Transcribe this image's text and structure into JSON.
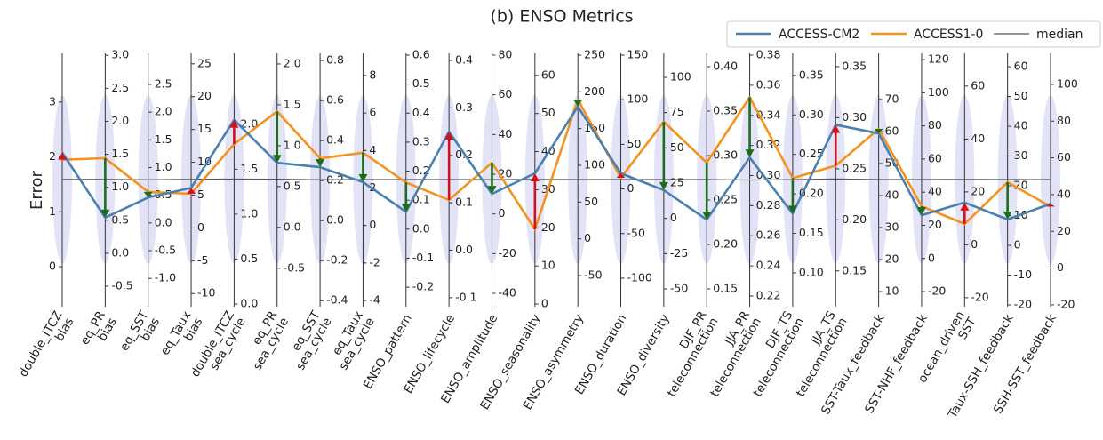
{
  "chart_data": {
    "type": "parallel",
    "title": "(b) ENSO Metrics",
    "ylabel": "Error",
    "legend": "upper right",
    "categories": [
      [
        "double_ITCZ",
        "bias"
      ],
      [
        "eq_PR",
        "bias"
      ],
      [
        "eq_SST",
        "bias"
      ],
      [
        "eq_Taux",
        "bias"
      ],
      [
        "double_ITCZ",
        "sea_cycle"
      ],
      [
        "eq_PR",
        "sea_cycle"
      ],
      [
        "eq_SST",
        "sea_cycle"
      ],
      [
        "eq_Taux",
        "sea_cycle"
      ],
      [
        "ENSO_pattern"
      ],
      [
        "ENSO_lifecycle"
      ],
      [
        "ENSO_amplitude"
      ],
      [
        "ENSO_seasonality"
      ],
      [
        "ENSO_asymmetry"
      ],
      [
        "ENSO_duration"
      ],
      [
        "ENSO_diversity"
      ],
      [
        "DJF_PR",
        "teleconnection"
      ],
      [
        "JJA_PR",
        "teleconnection"
      ],
      [
        "DJF_TS",
        "teleconnection"
      ],
      [
        "JJA_TS",
        "teleconnection"
      ],
      [
        "SST-Taux_feedback"
      ],
      [
        "SST-NHF_feedback"
      ],
      [
        "ocean_driven",
        "SST"
      ],
      [
        "Taux-SSH_feedback"
      ],
      [
        "SSH-SST_feedback"
      ]
    ],
    "axes": [
      {
        "ylim": [
          -0.73,
          3.89
        ],
        "yticks": [
          0,
          1,
          2,
          3
        ]
      },
      {
        "ylim": [
          -0.81,
          3.03
        ],
        "yticks": [
          -0.5,
          {
            "value": 0,
            "label": "0.0"
          },
          0.5,
          {
            "value": 1,
            "label": "1.0"
          },
          1.5,
          {
            "value": 2,
            "label": "2.0"
          },
          2.5,
          {
            "value": 3,
            "label": "3.0"
          }
        ]
      },
      {
        "ylim": [
          -1.51,
          3.06
        ],
        "yticks": [
          {
            "value": -1,
            "label": "-1.0"
          },
          -0.5,
          {
            "value": 0,
            "label": "0.0"
          },
          0.5,
          {
            "value": 1,
            "label": "1.0"
          },
          1.5,
          {
            "value": 2,
            "label": "2.0"
          },
          2.5
        ]
      },
      {
        "ylim": [
          -12.0,
          26.6
        ],
        "yticks": [
          -10,
          -5,
          0,
          5,
          10,
          15,
          20,
          25
        ]
      },
      {
        "ylim": [
          -0.03,
          2.79
        ],
        "yticks": [
          {
            "value": 0,
            "label": "0.0"
          },
          0.5,
          {
            "value": 1,
            "label": "1.0"
          },
          1.5,
          {
            "value": 2,
            "label": "2.0"
          }
        ]
      },
      {
        "ylim": [
          -0.97,
          2.13
        ],
        "yticks": [
          -0.5,
          {
            "value": 0,
            "label": "0.0"
          },
          0.5,
          {
            "value": 1,
            "label": "1.0"
          },
          1.5,
          {
            "value": 2,
            "label": "2.0"
          }
        ]
      },
      {
        "ylim": [
          -0.43,
          0.836
        ],
        "yticks": [
          -0.4,
          -0.2,
          {
            "value": 0,
            "label": "0.0"
          },
          0.2,
          0.4,
          0.6,
          0.8
        ]
      },
      {
        "ylim": [
          -4.33,
          9.18
        ],
        "yticks": [
          -4,
          -2,
          0,
          2,
          4,
          6,
          8
        ]
      },
      {
        "ylim": [
          -0.267,
          0.606
        ],
        "yticks": [
          -0.2,
          -0.1,
          {
            "value": 0,
            "label": "0.0"
          },
          0.1,
          0.2,
          0.3,
          0.4,
          0.5,
          0.6
        ]
      },
      {
        "ylim": [
          -0.119,
          0.415
        ],
        "yticks": [
          -0.1,
          {
            "value": 0,
            "label": "0.0"
          },
          0.1,
          0.2,
          0.3,
          0.4
        ]
      },
      {
        "ylim": [
          -46.7,
          80.9
        ],
        "yticks": [
          -40,
          -20,
          0,
          20,
          40,
          60,
          80
        ]
      },
      {
        "ylim": [
          -0.7,
          65.8
        ],
        "yticks": [
          0,
          10,
          20,
          30,
          40,
          50,
          60
        ]
      },
      {
        "ylim": [
          -92.3,
          252.4
        ],
        "yticks": [
          -50,
          0,
          50,
          100,
          150,
          200,
          250
        ]
      },
      {
        "ylim": [
          -131.9,
          152
        ],
        "yticks": [
          -100,
          -50,
          0,
          50,
          100,
          150
        ]
      },
      {
        "ylim": [
          -62.6,
          117
        ],
        "yticks": [
          -50,
          -25,
          0,
          25,
          50,
          75,
          100
        ]
      },
      {
        "ylim": [
          0.13,
          0.415
        ],
        "yticks": [
          0.15,
          {
            "value": 0.2,
            "label": "0.20"
          },
          0.25,
          {
            "value": 0.3,
            "label": "0.30"
          },
          0.35,
          {
            "value": 0.4,
            "label": "0.40"
          }
        ]
      },
      {
        "ylim": [
          0.2129,
          0.3812
        ],
        "yticks": [
          0.22,
          0.24,
          0.26,
          0.28,
          {
            "value": 0.3,
            "label": "0.30"
          },
          0.32,
          0.34,
          0.36,
          0.38
        ]
      },
      {
        "ylim": [
          0.0572,
          0.378
        ],
        "yticks": [
          {
            "value": 0.1,
            "label": "0.10"
          },
          0.15,
          {
            "value": 0.2,
            "label": "0.20"
          },
          0.25,
          {
            "value": 0.3,
            "label": "0.30"
          },
          0.35
        ]
      },
      {
        "ylim": [
          0.115,
          0.363
        ],
        "yticks": [
          0.15,
          {
            "value": 0.2,
            "label": "0.20"
          },
          0.25,
          {
            "value": 0.3,
            "label": "0.30"
          },
          0.35
        ]
      },
      {
        "ylim": [
          5.3,
          84.4
        ],
        "yticks": [
          10,
          20,
          30,
          40,
          50,
          60,
          70
        ]
      },
      {
        "ylim": [
          -29.1,
          123.8
        ],
        "yticks": [
          -20,
          0,
          20,
          40,
          60,
          80,
          100,
          120
        ]
      },
      {
        "ylim": [
          -23.4,
          72.4
        ],
        "yticks": [
          -20,
          0,
          20,
          40,
          60
        ]
      },
      {
        "ylim": [
          -20.6,
          64.5
        ],
        "yticks": [
          -20,
          -10,
          0,
          10,
          20,
          30,
          40,
          50,
          60
        ]
      },
      {
        "ylim": [
          -21,
          116.9
        ],
        "yticks": [
          -20,
          0,
          20,
          40,
          60,
          80,
          100
        ]
      }
    ],
    "series": [
      {
        "name": "ACCESS-CM2",
        "color": "#4a80b0",
        "values": [
          2.08,
          0.54,
          0.46,
          6.1,
          2.05,
          0.79,
          0.267,
          2.31,
          0.06,
          0.25,
          10.1,
          34.3,
          179.9,
          17.5,
          20.0,
          0.228,
          0.312,
          0.175,
          0.293,
          59.4,
          26.1,
          16.0,
          8.7,
          35.0
        ]
      },
      {
        "name": "ACCESS1-0",
        "color": "#f5921e",
        "values": [
          1.95,
          1.44,
          0.56,
          5.2,
          1.78,
          1.42,
          0.311,
          3.88,
          0.161,
          0.106,
          25.8,
          19.6,
          189.5,
          12.5,
          68.5,
          0.292,
          0.352,
          0.22,
          0.253,
          60.8,
          31.5,
          7.9,
          21.2,
          33.5
        ]
      },
      {
        "name": "median",
        "color": "#555555",
        "values": [
          1.59,
          1.12,
          0.78,
          7.4,
          1.39,
          0.59,
          0.204,
          2.45,
          0.171,
          0.149,
          17.3,
          32.7,
          80.7,
          10.6,
          27.5,
          0.273,
          0.297,
          0.218,
          0.24,
          45.0,
          47.6,
          24.7,
          22.1,
          48.2
        ]
      }
    ],
    "arrow_colors": {
      "up": "#d0121b",
      "down": "#1d6b1d"
    },
    "violin_color": "#dcdcf5"
  }
}
